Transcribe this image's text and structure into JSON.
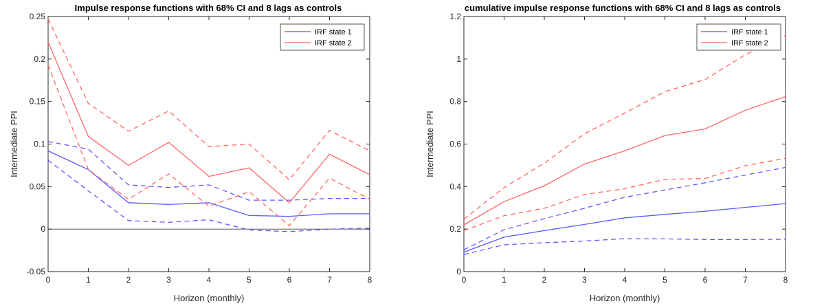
{
  "chart_data": [
    {
      "type": "line",
      "title": "Impulse response functions with 68% CI and 8 lags as controls",
      "xlabel": "Horizon (monthly)",
      "ylabel": "Intermediate PPI",
      "xlim": [
        0,
        8
      ],
      "ylim": [
        -0.05,
        0.25
      ],
      "xticks": [
        0,
        1,
        2,
        3,
        4,
        5,
        6,
        7,
        8
      ],
      "xtick_labels": [
        "0",
        "1",
        "2",
        "3",
        "4",
        "5",
        "6",
        "7",
        "8"
      ],
      "yticks": [
        -0.05,
        0,
        0.05,
        0.1,
        0.15,
        0.2,
        0.25
      ],
      "ytick_labels": [
        "-0.05",
        "0",
        "0.05",
        "0.1",
        "0.15",
        "0.2",
        "0.25"
      ],
      "zero_line": true,
      "grid": false,
      "legend_position": "top-right",
      "x": [
        0,
        1,
        2,
        3,
        4,
        5,
        6,
        7,
        8
      ],
      "series": [
        {
          "name": "IRF state 1",
          "color": "#5a5aff",
          "dashed": false,
          "legend": true,
          "values": [
            0.092,
            0.07,
            0.031,
            0.029,
            0.031,
            0.016,
            0.015,
            0.018,
            0.018
          ]
        },
        {
          "name": "IRF state 2",
          "color": "#ff6666",
          "dashed": false,
          "legend": true,
          "values": [
            0.22,
            0.109,
            0.075,
            0.102,
            0.062,
            0.072,
            0.031,
            0.088,
            0.064
          ]
        },
        {
          "color": "#5a5aff",
          "dashed": true,
          "legend": false,
          "values": [
            0.103,
            0.094,
            0.052,
            0.049,
            0.052,
            0.034,
            0.034,
            0.036,
            0.036
          ]
        },
        {
          "color": "#5a5aff",
          "dashed": true,
          "legend": false,
          "values": [
            0.081,
            0.045,
            0.01,
            0.008,
            0.011,
            -0.001,
            -0.003,
            0.0,
            0.001
          ]
        },
        {
          "color": "#ff6666",
          "dashed": true,
          "legend": false,
          "values": [
            0.247,
            0.148,
            0.115,
            0.139,
            0.097,
            0.1,
            0.058,
            0.116,
            0.092
          ]
        },
        {
          "color": "#ff6666",
          "dashed": true,
          "legend": false,
          "values": [
            0.193,
            0.07,
            0.035,
            0.065,
            0.027,
            0.044,
            0.004,
            0.06,
            0.035
          ]
        }
      ]
    },
    {
      "type": "line",
      "title": "cumulative impulse response functions with 68% CI and 8 lags as controls",
      "xlabel": "Horizon (monthly)",
      "ylabel": "Intermediate PPI",
      "xlim": [
        0,
        8
      ],
      "ylim": [
        0,
        1.2
      ],
      "xticks": [
        0,
        1,
        2,
        3,
        4,
        5,
        6,
        7,
        8
      ],
      "xtick_labels": [
        "0",
        "1",
        "2",
        "3",
        "4",
        "5",
        "6",
        "7",
        "8"
      ],
      "yticks": [
        0,
        0.2,
        0.4,
        0.6,
        0.8,
        1,
        1.2
      ],
      "ytick_labels": [
        "0",
        "0.2",
        "0.4",
        "0.6",
        "0.8",
        "1",
        "1.2"
      ],
      "zero_line": false,
      "grid": false,
      "legend_position": "top-right",
      "x": [
        0,
        1,
        2,
        3,
        4,
        5,
        6,
        7,
        8
      ],
      "series": [
        {
          "name": "IRF state 1",
          "color": "#5a5aff",
          "dashed": false,
          "legend": true,
          "values": [
            0.092,
            0.162,
            0.193,
            0.222,
            0.253,
            0.269,
            0.284,
            0.302,
            0.32
          ]
        },
        {
          "name": "IRF state 2",
          "color": "#ff6666",
          "dashed": false,
          "legend": true,
          "values": [
            0.22,
            0.329,
            0.404,
            0.506,
            0.568,
            0.64,
            0.671,
            0.759,
            0.823
          ]
        },
        {
          "color": "#5a5aff",
          "dashed": true,
          "legend": false,
          "values": [
            0.103,
            0.197,
            0.249,
            0.298,
            0.35,
            0.384,
            0.418,
            0.454,
            0.49
          ]
        },
        {
          "color": "#5a5aff",
          "dashed": true,
          "legend": false,
          "values": [
            0.081,
            0.126,
            0.136,
            0.144,
            0.155,
            0.154,
            0.151,
            0.151,
            0.152
          ]
        },
        {
          "color": "#ff6666",
          "dashed": true,
          "legend": false,
          "values": [
            0.247,
            0.395,
            0.51,
            0.649,
            0.746,
            0.846,
            0.904,
            1.02,
            1.112
          ]
        },
        {
          "color": "#ff6666",
          "dashed": true,
          "legend": false,
          "values": [
            0.193,
            0.263,
            0.298,
            0.363,
            0.39,
            0.434,
            0.438,
            0.498,
            0.533
          ]
        }
      ]
    }
  ]
}
